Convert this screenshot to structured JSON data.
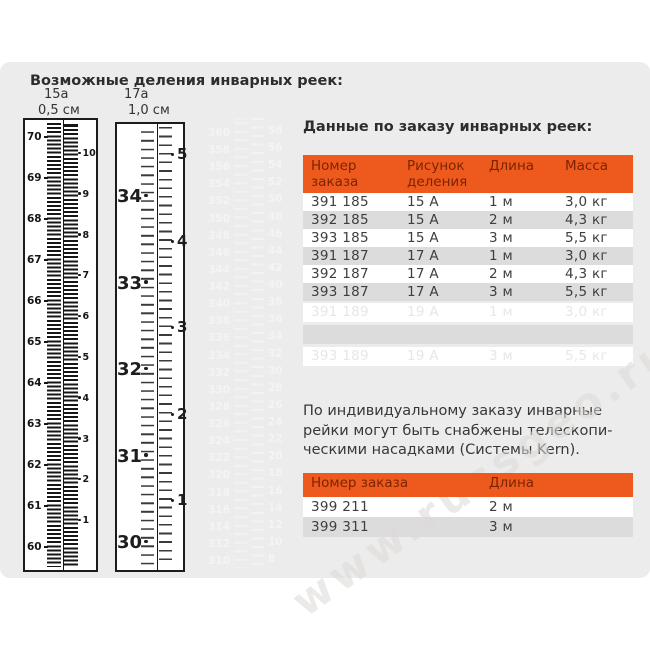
{
  "left_section": {
    "title": "Возможные деления инварных реек:",
    "rulers": {
      "r15a": {
        "label": "15а",
        "division": "0,5 см",
        "left_numbers": [
          70,
          69,
          68,
          67,
          66,
          65,
          64,
          63,
          62,
          61,
          60
        ],
        "right_numbers": [
          10,
          9,
          8,
          7,
          6,
          5,
          4,
          3,
          2,
          1
        ]
      },
      "r17a": {
        "label": "17а",
        "division": "1,0 см",
        "left_numbers": [
          34,
          33,
          32,
          31,
          30
        ],
        "right_numbers": [
          5,
          4,
          3,
          2,
          1
        ]
      },
      "ghost": {
        "left_numbers": [
          360,
          358,
          356,
          354,
          352,
          350,
          348,
          346,
          344,
          342,
          340,
          338,
          336,
          334,
          332,
          330,
          328,
          326,
          324,
          322,
          320,
          318,
          316,
          314,
          312,
          310
        ],
        "right_numbers": [
          58,
          56,
          54,
          52,
          50,
          48,
          46,
          44,
          42,
          40,
          38,
          36,
          34,
          32,
          30,
          28,
          26,
          24,
          22,
          20,
          18,
          16,
          14,
          12,
          10,
          8
        ]
      }
    }
  },
  "right_section": {
    "title": "Данные по заказу инварных реек:",
    "order_table": {
      "headers": [
        "Номер заказа",
        "Рисунок деления",
        "Длина",
        "Масса"
      ],
      "rows": [
        [
          "391 185",
          "15 А",
          "1 м",
          "3,0 кг"
        ],
        [
          "392 185",
          "15 А",
          "2 м",
          "4,3 кг"
        ],
        [
          "393 185",
          "15 А",
          "3 м",
          "5,5 кг"
        ],
        [
          "391 187",
          "17 А",
          "1 м",
          "3,0 кг"
        ],
        [
          "392 187",
          "17 А",
          "2 м",
          "4,3 кг"
        ],
        [
          "393 187",
          "17 А",
          "3 м",
          "5,5 кг"
        ]
      ],
      "ghost_rows": [
        [
          "391 189",
          "19 А",
          "1 м",
          "3,0 кг"
        ],
        [
          "",
          "",
          "",
          ""
        ],
        [
          "393 189",
          "19 А",
          "3 м",
          "5,5 кг"
        ]
      ]
    },
    "note_lines": [
      "По индивидуальному заказу инварные",
      "рейки могут быть снабжены телескопи-",
      "ческими насадками (Системы Kern)."
    ],
    "telescopic_table": {
      "headers": [
        "Номер заказа",
        "Длина"
      ],
      "rows": [
        [
          "399 211",
          "2 м"
        ],
        [
          "399 311",
          "3 м"
        ]
      ]
    }
  },
  "watermark": "www.russgeo.ru",
  "colors": {
    "accent_orange": "#ee5a1d",
    "table_header_text": "#7d2301",
    "row_alt_gray": "#dcdcdc",
    "panel_gray": "#ececec",
    "ruler_ink": "#1c1c1c"
  }
}
